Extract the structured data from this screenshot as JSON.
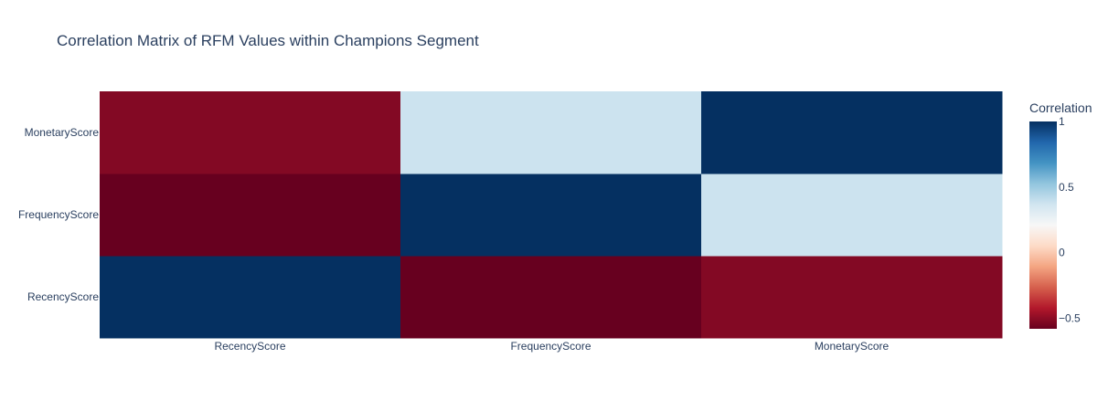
{
  "chart_data": {
    "type": "heatmap",
    "title": "Correlation Matrix of RFM Values within Champions Segment",
    "x_categories": [
      "RecencyScore",
      "FrequencyScore",
      "MonetaryScore"
    ],
    "y_categories": [
      "RecencyScore",
      "FrequencyScore",
      "MonetaryScore"
    ],
    "z": [
      [
        1.0,
        -0.58,
        -0.52
      ],
      [
        -0.58,
        1.0,
        0.38
      ],
      [
        -0.52,
        0.38,
        1.0
      ]
    ],
    "colorscale": "RdBu",
    "colorscale_stops": [
      [
        0.0,
        "#67001f"
      ],
      [
        0.1,
        "#b2182b"
      ],
      [
        0.2,
        "#d6604d"
      ],
      [
        0.3,
        "#f4a582"
      ],
      [
        0.4,
        "#fddbc7"
      ],
      [
        0.5,
        "#f7f7f7"
      ],
      [
        0.6,
        "#d1e5f0"
      ],
      [
        0.7,
        "#92c5de"
      ],
      [
        0.8,
        "#4393c3"
      ],
      [
        0.9,
        "#2166ac"
      ],
      [
        1.0,
        "#053061"
      ]
    ],
    "zmin": -0.58,
    "zmax": 1.0,
    "colorbar": {
      "title": "Correlation",
      "tickvals": [
        1,
        0.5,
        0,
        -0.5
      ],
      "ticktext": [
        "1",
        "0.5",
        "0",
        "−0.5"
      ]
    }
  }
}
